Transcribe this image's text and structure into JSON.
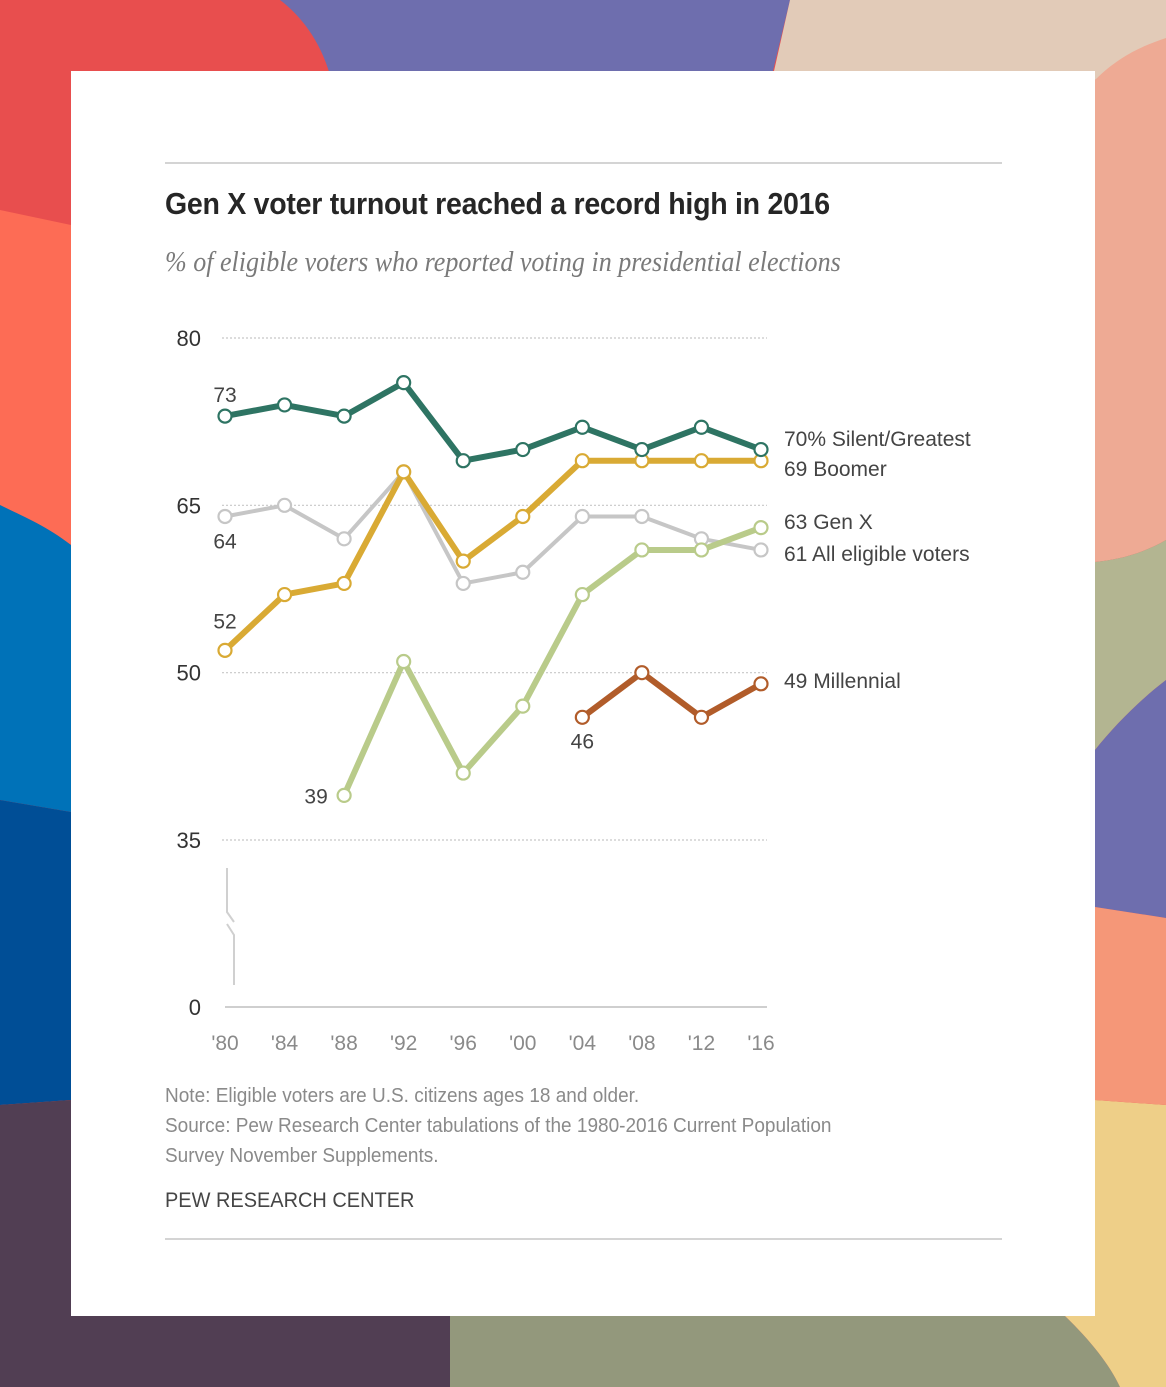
{
  "background": {
    "colors": [
      "#e84e4e",
      "#6e6eae",
      "#e2cbb8",
      "#eeaa94",
      "#fd6c55",
      "#0072b8",
      "#004e96",
      "#513e53",
      "#93987c",
      "#eecf88",
      "#b3b591",
      "#f59778"
    ]
  },
  "header": {
    "title": "Gen X voter turnout reached a record high in 2016",
    "subtitle": "% of eligible voters who reported voting in presidential elections"
  },
  "footer": {
    "note": "Note: Eligible voters are U.S. citizens ages 18 and older.",
    "source_line1": "Source: Pew Research Center tabulations of the 1980-2016 Current Population",
    "source_line2": "Survey November Supplements.",
    "org": "PEW RESEARCH CENTER"
  },
  "chart_data": {
    "type": "line",
    "title": "Gen X voter turnout reached a record high in 2016",
    "subtitle": "% of eligible voters who reported voting in presidential elections",
    "xlabel": "",
    "ylabel": "",
    "x": [
      "'80",
      "'84",
      "'88",
      "'92",
      "'96",
      "'00",
      "'04",
      "'08",
      "'12",
      "'16"
    ],
    "yticks": [
      80,
      65,
      50,
      35,
      0
    ],
    "ylim": [
      0,
      80
    ],
    "axis_break": "between 0 and 35",
    "grid": true,
    "legend": "direct labels at right end of lines",
    "series": [
      {
        "name": "Silent/Greatest",
        "color": "#2e7463",
        "end_label": "70% Silent/Greatest",
        "start_label": "73",
        "values": [
          73,
          74,
          73,
          76,
          69,
          70,
          72,
          70,
          72,
          70
        ]
      },
      {
        "name": "Boomer",
        "color": "#d9aa34",
        "end_label": "69 Boomer",
        "start_label": "52",
        "values": [
          52,
          57,
          58,
          68,
          60,
          64,
          69,
          69,
          69,
          69
        ]
      },
      {
        "name": "All eligible voters",
        "color": "#c6c6c6",
        "end_label": "61 All eligible voters",
        "start_label": "64",
        "values": [
          64,
          65,
          62,
          68,
          58,
          59,
          64,
          64,
          62,
          61
        ]
      },
      {
        "name": "Gen X",
        "color": "#b9cb8a",
        "end_label": "63 Gen X",
        "start_label": "39",
        "values": [
          null,
          null,
          39,
          51,
          41,
          47,
          57,
          61,
          61,
          63
        ]
      },
      {
        "name": "Millennial",
        "color": "#b15c2a",
        "end_label": "49 Millennial",
        "start_label": "46",
        "values": [
          null,
          null,
          null,
          null,
          null,
          null,
          46,
          50,
          46,
          49
        ]
      }
    ]
  }
}
